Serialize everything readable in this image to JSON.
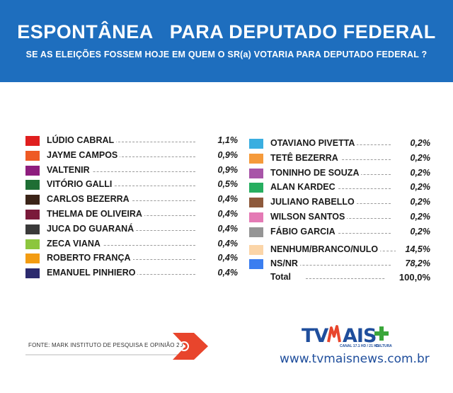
{
  "header": {
    "title": "ESPONTÂNEA   PARA DEPUTADO FEDERAL",
    "subtitle": "SE AS ELEIÇÕES FOSSEM HOJE EM QUEM O SR(a) VOTARIA PARA DEPUTADO FEDERAL ?"
  },
  "chart_data": {
    "type": "table",
    "unit": "%",
    "left_column": [
      {
        "name": "LÚDIO CABRAL",
        "value": "1,1%",
        "color": "#e01f1f"
      },
      {
        "name": "JAYME CAMPOS",
        "value": "0,9%",
        "color": "#ee5a24"
      },
      {
        "name": "VALTENIR",
        "value": "0,9%",
        "color": "#8e1e7e"
      },
      {
        "name": "VITÓRIO GALLI",
        "value": "0,5%",
        "color": "#1e6e34"
      },
      {
        "name": "CARLOS BEZERRA",
        "value": "0,4%",
        "color": "#3b2418"
      },
      {
        "name": "THELMA DE OLIVEIRA",
        "value": "0,4%",
        "color": "#7a1a3a"
      },
      {
        "name": "JUCA DO GUARANÁ",
        "value": "0,4%",
        "color": "#3a3a3a"
      },
      {
        "name": "ZECA VIANA",
        "value": "0,4%",
        "color": "#8cc63e"
      },
      {
        "name": "ROBERTO FRANÇA",
        "value": "0,4%",
        "color": "#f39c12"
      },
      {
        "name": "EMANUEL PINHIERO",
        "value": "0,4%",
        "color": "#2c2a6e"
      }
    ],
    "right_column": [
      {
        "name": "OTAVIANO PIVETTA",
        "value": "0,2%",
        "color": "#3aaee0"
      },
      {
        "name": "TETÊ BEZERRA",
        "value": "0,2%",
        "color": "#f59a3a"
      },
      {
        "name": "TONINHO DE SOUZA",
        "value": "0,2%",
        "color": "#a855a8"
      },
      {
        "name": "ALAN KARDEC",
        "value": "0,2%",
        "color": "#27ae60"
      },
      {
        "name": "JULIANO RABELLO",
        "value": "0,2%",
        "color": "#8e5a3c"
      },
      {
        "name": "WILSON SANTOS",
        "value": "0,2%",
        "color": "#e47ab5"
      },
      {
        "name": "FÁBIO GARCIA",
        "value": "0,2%",
        "color": "#959595"
      },
      {
        "name": "NENHUM/BRANCO/NULO",
        "value": "14,5%",
        "color": "#fbd5a8"
      },
      {
        "name": "NS/NR",
        "value": "78,2%",
        "color": "#3b7ef0"
      }
    ],
    "total": {
      "label": "Total",
      "value": "100,0%"
    }
  },
  "footer": {
    "source": "FONTE: MARK INSTITUTO DE PESQUISA E OPINIÃO 2017",
    "logo_text": "TV MAIS",
    "logo_canal": "CANAL 17.1 HD / 21 HD",
    "logo_cultura": "CULTURA",
    "website": "www.tvmaisnews.com.br"
  },
  "colors": {
    "header_bg": "#1e6ebe",
    "brand": "#1f4e9c",
    "arrow": "#e8452c"
  }
}
